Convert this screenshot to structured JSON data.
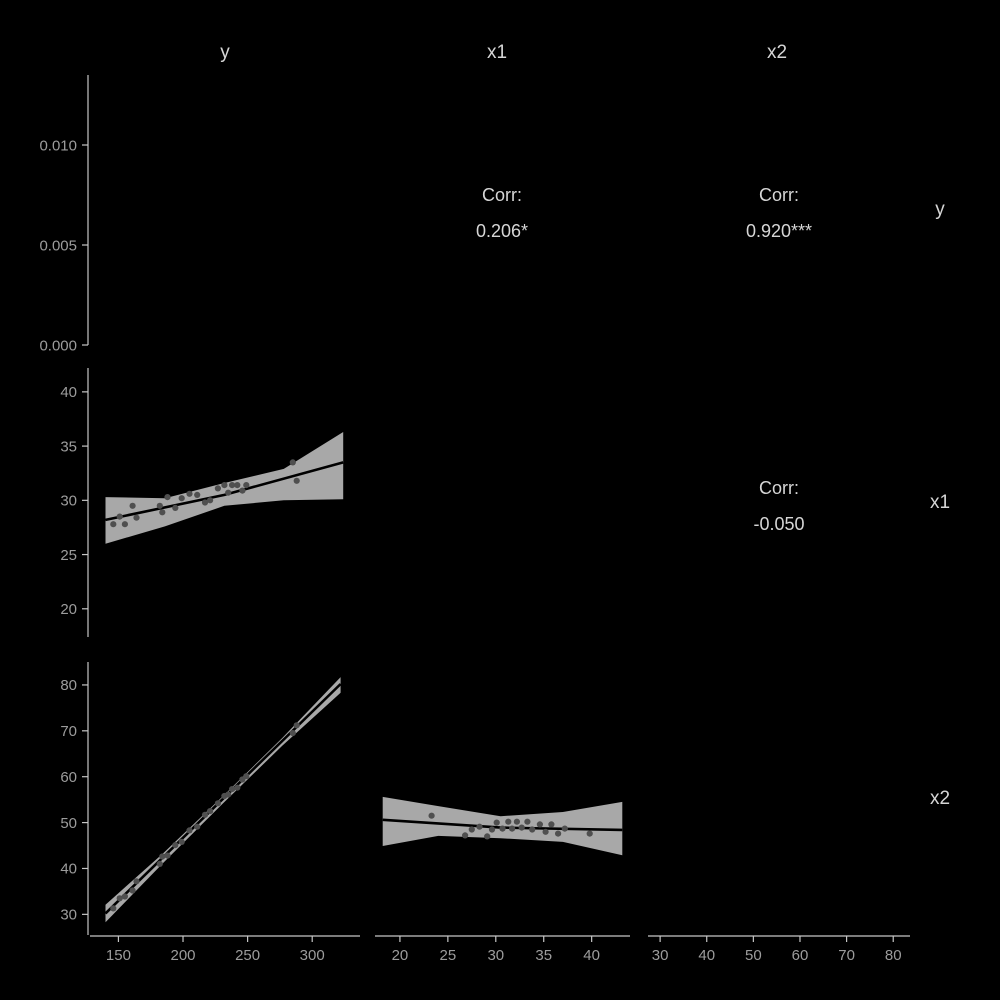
{
  "colors": {
    "background": "#000000",
    "title_text": "#d6d6d6",
    "tick_text": "#9c9c9c",
    "axis": "#c6c6c6",
    "ribbon": "#a8a8a8",
    "line": "#000000",
    "point": "#4f4f4f"
  },
  "chart_data": {
    "type": "scatter",
    "subtype": "pairs-matrix (ggpairs-style, 3x3, dark background)",
    "variables": [
      "y",
      "x1",
      "x2"
    ],
    "correlations": {
      "y_x1": "0.206*",
      "y_x2": "0.920***",
      "x1_x2": "-0.050"
    },
    "axes": {
      "rows": [
        {
          "var": "density-of-y",
          "ticks": [
            0.01,
            0.005,
            0.0
          ],
          "tick_labels": [
            "0.010",
            "0.005",
            "0.000"
          ],
          "domain": [
            0,
            0.0135
          ]
        },
        {
          "var": "x1",
          "ticks": [
            40,
            35,
            30,
            25,
            20
          ],
          "tick_labels": [
            "40",
            "35",
            "30",
            "25",
            "20"
          ],
          "domain": [
            17.4,
            42.2
          ]
        },
        {
          "var": "x2",
          "ticks": [
            80,
            70,
            60,
            50,
            40,
            30
          ],
          "tick_labels": [
            "80",
            "70",
            "60",
            "50",
            "40",
            "30"
          ],
          "domain": [
            25.5,
            85
          ]
        }
      ],
      "cols": [
        {
          "var": "y",
          "ticks": [
            150,
            200,
            250,
            300
          ],
          "tick_labels": [
            "150",
            "200",
            "250",
            "300"
          ],
          "domain": [
            128,
            337
          ]
        },
        {
          "var": "x1",
          "ticks": [
            20,
            25,
            30,
            35,
            40
          ],
          "tick_labels": [
            "20",
            "25",
            "30",
            "35",
            "40"
          ],
          "domain": [
            17.4,
            44
          ]
        },
        {
          "var": "x2",
          "ticks": [
            30,
            40,
            50,
            60,
            70,
            80
          ],
          "tick_labels": [
            "30",
            "40",
            "50",
            "60",
            "70",
            "80"
          ],
          "domain": [
            27.4,
            83.6
          ]
        }
      ]
    },
    "panels": [
      {
        "id": "density-y",
        "row": 1,
        "col": 1,
        "type": "density",
        "var": "y",
        "note": "density curve rendered black - not visible against black background"
      },
      {
        "id": "corr-y-x1",
        "row": 1,
        "col": 2,
        "type": "correlation",
        "label": "Corr:",
        "value": "0.206*"
      },
      {
        "id": "corr-y-x2",
        "row": 1,
        "col": 3,
        "type": "correlation",
        "label": "Corr:",
        "value": "0.920***"
      },
      {
        "id": "scatter-x1-vs-y",
        "row": 2,
        "col": 1,
        "type": "scatter-smooth",
        "x_var": "y",
        "y_var": "x1",
        "points": [
          [
            146,
            27.8
          ],
          [
            151,
            28.5
          ],
          [
            155,
            27.8
          ],
          [
            161,
            29.5
          ],
          [
            164,
            28.4
          ],
          [
            182,
            29.5
          ],
          [
            184,
            28.9
          ],
          [
            188,
            30.3
          ],
          [
            194,
            29.3
          ],
          [
            199,
            30.2
          ],
          [
            205,
            30.6
          ],
          [
            211,
            30.5
          ],
          [
            217,
            29.8
          ],
          [
            221,
            30.0
          ],
          [
            227,
            31.1
          ],
          [
            232,
            31.4
          ],
          [
            235,
            30.7
          ],
          [
            238,
            31.4
          ],
          [
            242,
            31.4
          ],
          [
            246,
            30.9
          ],
          [
            249,
            31.4
          ],
          [
            285,
            33.5
          ],
          [
            288,
            31.8
          ]
        ],
        "line": [
          [
            140,
            28.2
          ],
          [
            232,
            30.5
          ],
          [
            324,
            33.5
          ]
        ],
        "ribbon": [
          [
            140,
            26.0,
            30.3
          ],
          [
            186,
            27.6,
            30.2
          ],
          [
            232,
            29.5,
            31.6
          ],
          [
            278,
            30.0,
            32.9
          ],
          [
            324,
            30.1,
            36.3
          ]
        ]
      },
      {
        "id": "density-x1",
        "row": 2,
        "col": 2,
        "type": "density",
        "var": "x1",
        "note": "density curve rendered black - not visible against black background"
      },
      {
        "id": "corr-x1-x2",
        "row": 2,
        "col": 3,
        "type": "correlation",
        "label": "Corr:",
        "value": "-0.050"
      },
      {
        "id": "scatter-x2-vs-y",
        "row": 3,
        "col": 1,
        "type": "scatter-smooth",
        "x_var": "y",
        "y_var": "x2",
        "points": [
          [
            146,
            31.3
          ],
          [
            151,
            33.5
          ],
          [
            155,
            33.9
          ],
          [
            161,
            35.2
          ],
          [
            164,
            37.2
          ],
          [
            182,
            41.0
          ],
          [
            184,
            42.6
          ],
          [
            188,
            42.8
          ],
          [
            194,
            45.1
          ],
          [
            199,
            45.8
          ],
          [
            205,
            48.3
          ],
          [
            211,
            49.1
          ],
          [
            217,
            51.7
          ],
          [
            221,
            52.5
          ],
          [
            227,
            54.2
          ],
          [
            232,
            55.8
          ],
          [
            235,
            56.1
          ],
          [
            238,
            57.3
          ],
          [
            242,
            57.6
          ],
          [
            246,
            59.4
          ],
          [
            249,
            60.1
          ],
          [
            285,
            69.5
          ],
          [
            288,
            71.2
          ]
        ],
        "line": [
          [
            140,
            30.2
          ],
          [
            322,
            80.2
          ]
        ],
        "ribbon": [
          [
            140,
            28.3,
            32.1
          ],
          [
            185,
            41.3,
            43.4
          ],
          [
            231,
            54.2,
            55.8
          ],
          [
            277,
            66.8,
            68.5
          ],
          [
            322,
            78.3,
            81.7
          ]
        ]
      },
      {
        "id": "scatter-x2-vs-x1",
        "row": 3,
        "col": 2,
        "type": "scatter-smooth",
        "x_var": "x1",
        "y_var": "x2",
        "points": [
          [
            23.3,
            51.5
          ],
          [
            26.8,
            47.2
          ],
          [
            27.5,
            48.5
          ],
          [
            28.3,
            49.1
          ],
          [
            29.1,
            47.0
          ],
          [
            29.6,
            48.5
          ],
          [
            30.1,
            50.0
          ],
          [
            30.7,
            48.7
          ],
          [
            31.3,
            50.2
          ],
          [
            31.7,
            48.7
          ],
          [
            32.2,
            50.2
          ],
          [
            32.7,
            48.9
          ],
          [
            33.3,
            50.2
          ],
          [
            33.8,
            48.5
          ],
          [
            34.6,
            49.6
          ],
          [
            35.2,
            48.0
          ],
          [
            35.8,
            49.6
          ],
          [
            36.5,
            47.6
          ],
          [
            37.2,
            48.7
          ],
          [
            39.8,
            47.6
          ]
        ],
        "line": [
          [
            18.2,
            50.6
          ],
          [
            30.5,
            48.9
          ],
          [
            43.2,
            48.4
          ]
        ],
        "ribbon": [
          [
            18.2,
            44.9,
            55.6
          ],
          [
            24,
            47.1,
            53.6
          ],
          [
            30.5,
            46.6,
            51.4
          ],
          [
            37,
            45.8,
            52.3
          ],
          [
            43.2,
            42.9,
            54.5
          ]
        ]
      },
      {
        "id": "density-x2",
        "row": 3,
        "col": 3,
        "type": "density",
        "var": "x2",
        "note": "density curve rendered black - not visible against black background"
      }
    ]
  }
}
